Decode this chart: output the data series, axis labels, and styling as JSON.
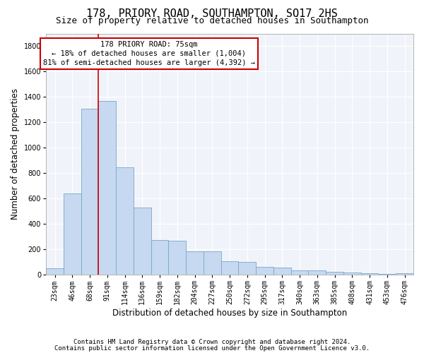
{
  "title": "178, PRIORY ROAD, SOUTHAMPTON, SO17 2HS",
  "subtitle": "Size of property relative to detached houses in Southampton",
  "xlabel": "Distribution of detached houses by size in Southampton",
  "ylabel": "Number of detached properties",
  "categories": [
    "23sqm",
    "46sqm",
    "68sqm",
    "91sqm",
    "114sqm",
    "136sqm",
    "159sqm",
    "182sqm",
    "204sqm",
    "227sqm",
    "250sqm",
    "272sqm",
    "295sqm",
    "317sqm",
    "340sqm",
    "363sqm",
    "385sqm",
    "408sqm",
    "431sqm",
    "453sqm",
    "476sqm"
  ],
  "values": [
    50,
    640,
    1310,
    1370,
    845,
    530,
    275,
    270,
    185,
    185,
    105,
    100,
    60,
    55,
    35,
    35,
    25,
    20,
    15,
    5,
    15
  ],
  "bar_color": "#c6d9f0",
  "bar_edge_color": "#7aa5cc",
  "vline_color": "#cc0000",
  "vline_x": 2.5,
  "annotation_text": "178 PRIORY ROAD: 75sqm\n← 18% of detached houses are smaller (1,004)\n81% of semi-detached houses are larger (4,392) →",
  "annotation_box_color": "#cc0000",
  "ylim": [
    0,
    1900
  ],
  "yticks": [
    0,
    200,
    400,
    600,
    800,
    1000,
    1200,
    1400,
    1600,
    1800
  ],
  "footer1": "Contains HM Land Registry data © Crown copyright and database right 2024.",
  "footer2": "Contains public sector information licensed under the Open Government Licence v3.0.",
  "title_fontsize": 11,
  "subtitle_fontsize": 9,
  "xlabel_fontsize": 8.5,
  "ylabel_fontsize": 8.5,
  "tick_fontsize": 7,
  "annotation_fontsize": 7.5,
  "footer_fontsize": 6.5,
  "bg_color": "#f0f4fa"
}
